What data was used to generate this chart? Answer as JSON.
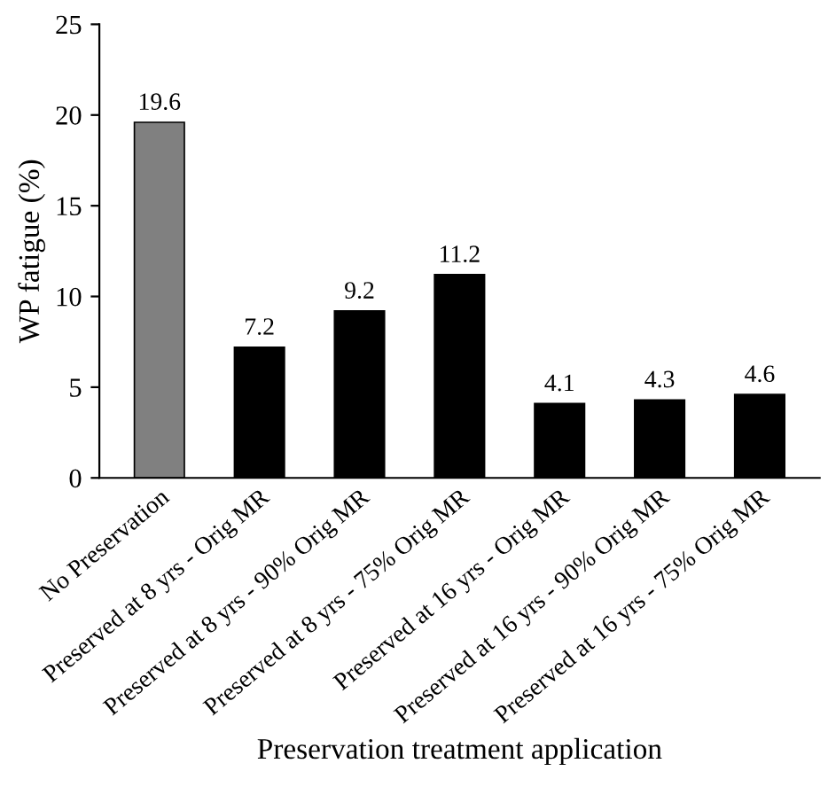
{
  "chart_data": {
    "type": "bar",
    "xlabel": "Preservation treatment application",
    "ylabel": "WP fatigue (%)",
    "categories": [
      "No Preservation",
      "Preserved at 8 yrs - Orig MR",
      "Preserved at 8 yrs - 90% Orig MR",
      "Preserved at 8 yrs - 75% Orig MR",
      "Preserved at 16 yrs - Orig MR",
      "Preserved at 16 yrs - 90% Orig MR",
      "Preserved at 16 yrs - 75% Orig MR"
    ],
    "values": [
      19.6,
      7.2,
      9.2,
      11.2,
      4.1,
      4.3,
      4.6
    ],
    "colors": [
      "#808080",
      "#000000",
      "#000000",
      "#000000",
      "#000000",
      "#000000",
      "#000000"
    ],
    "ylim": [
      0,
      25
    ],
    "yticks": [
      0,
      5,
      10,
      15,
      20,
      25
    ],
    "data_labels": true,
    "grid": false
  }
}
